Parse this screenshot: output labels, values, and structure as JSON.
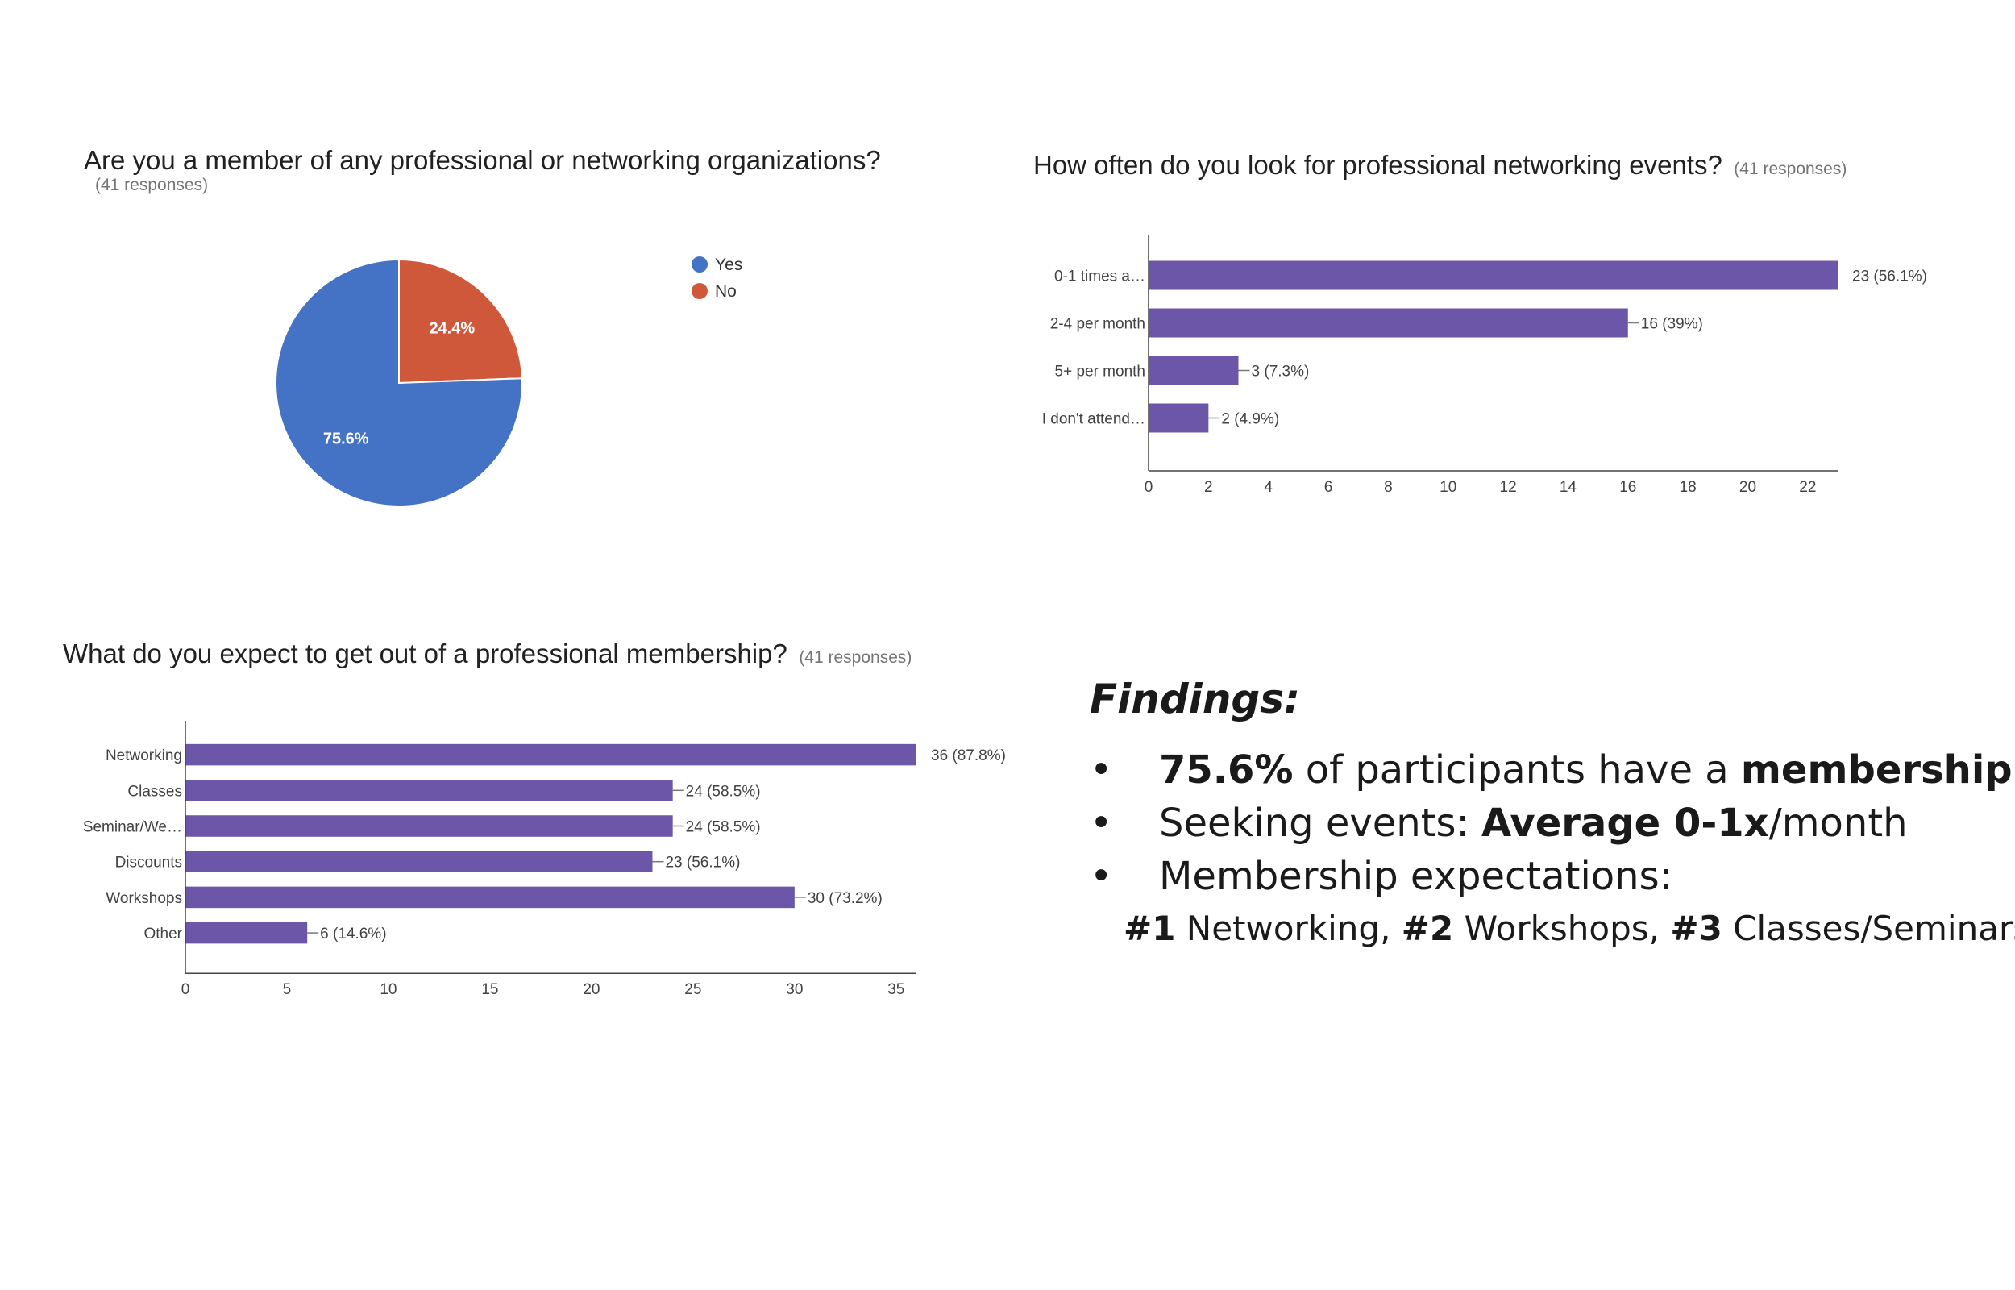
{
  "charts": {
    "membership": {
      "title": "Are you a member of any professional or networking organizations?",
      "responses": "(41 responses)"
    },
    "frequency": {
      "title": "How often do you look for professional networking events?",
      "responses": "(41 responses)"
    },
    "expectations": {
      "title": "What do you expect to get out of a professional membership?",
      "responses": "(41 responses)"
    }
  },
  "chart_data": [
    {
      "type": "pie",
      "title": "Are you a member of any professional or networking organizations?",
      "labels": [
        "Yes",
        "No"
      ],
      "values": [
        75.6,
        24.4
      ],
      "value_labels": [
        "75.6%",
        "24.4%"
      ],
      "colors": [
        "#4472c4",
        "#d0583a"
      ],
      "legend": "right"
    },
    {
      "type": "bar",
      "orientation": "horizontal",
      "title": "How often do you look for professional networking events?",
      "categories": [
        "0-1 times a…",
        "2-4 per month",
        "5+ per month",
        "I don't attend…"
      ],
      "values": [
        23,
        16,
        3,
        2
      ],
      "value_labels": [
        "23 (56.1%)",
        "16 (39%)",
        "3 (7.3%)",
        "2 (4.9%)"
      ],
      "xticks": [
        0,
        2,
        4,
        6,
        8,
        10,
        12,
        14,
        16,
        18,
        20,
        22
      ],
      "xlim": [
        0,
        23
      ],
      "color": "#6b56a8"
    },
    {
      "type": "bar",
      "orientation": "horizontal",
      "title": "What do you expect to get out of a professional membership?",
      "categories": [
        "Networking",
        "Classes",
        "Seminar/We…",
        "Discounts",
        "Workshops",
        "Other"
      ],
      "values": [
        36,
        24,
        24,
        23,
        30,
        6
      ],
      "value_labels": [
        "36 (87.8%)",
        "24 (58.5%)",
        "24 (58.5%)",
        "23 (56.1%)",
        "30 (73.2%)",
        "6 (14.6%)"
      ],
      "xticks": [
        0,
        5,
        10,
        15,
        20,
        25,
        30,
        35
      ],
      "xlim": [
        0,
        36
      ],
      "color": "#6b56a8"
    }
  ],
  "findings": {
    "heading": "Findings:",
    "bullet_symbol": "•",
    "item1": {
      "strong": "75.6%",
      "mid": " of participants have a ",
      "strong_end": "membership"
    },
    "item2": {
      "text": "Seeking events: ",
      "strong": "Average 0-1x",
      "end": "/month"
    },
    "item3": {
      "text": "Membership expectations:"
    },
    "subline": {
      "r1": "#1",
      "t1": " Networking, ",
      "r2": "#2",
      "t2": " Workshops, ",
      "r3": "#3",
      "t3": " Classes/Seminars"
    }
  }
}
